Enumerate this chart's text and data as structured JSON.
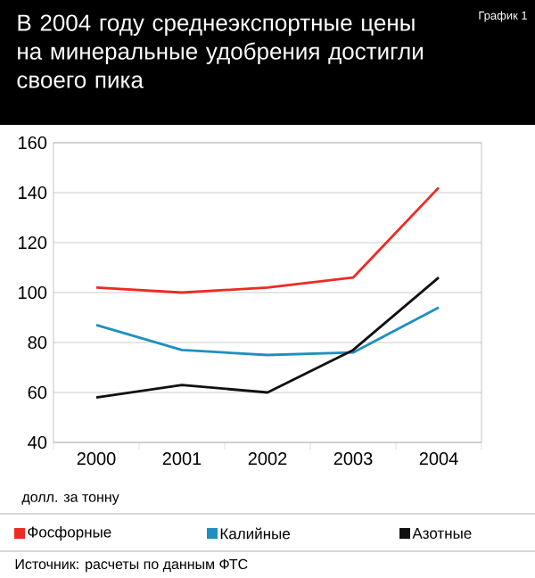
{
  "chart_data": {
    "type": "line",
    "title": "В 2004 году среднеэкспортные цены на минеральные удобрения достигли своего пика",
    "subtitle": "График 1",
    "ylabel": "долл. за тонну",
    "annotations": [
      "Источник: расчеты по данным ФТС"
    ],
    "categories": [
      "2000",
      "2001",
      "2002",
      "2003",
      "2004"
    ],
    "series": [
      {
        "name": "Фосфорные",
        "color": "#ee2a24",
        "values": [
          102,
          100,
          102,
          106,
          142
        ]
      },
      {
        "name": "Калийные",
        "color": "#1e90c0",
        "values": [
          87,
          77,
          75,
          76,
          94
        ]
      },
      {
        "name": "Азотные",
        "color": "#111111",
        "values": [
          58,
          63,
          60,
          77,
          106
        ]
      }
    ],
    "ylim": [
      40,
      160
    ],
    "yticks": [
      40,
      60,
      80,
      100,
      120,
      140,
      160
    ],
    "grid": "y",
    "legend": "bottom"
  }
}
